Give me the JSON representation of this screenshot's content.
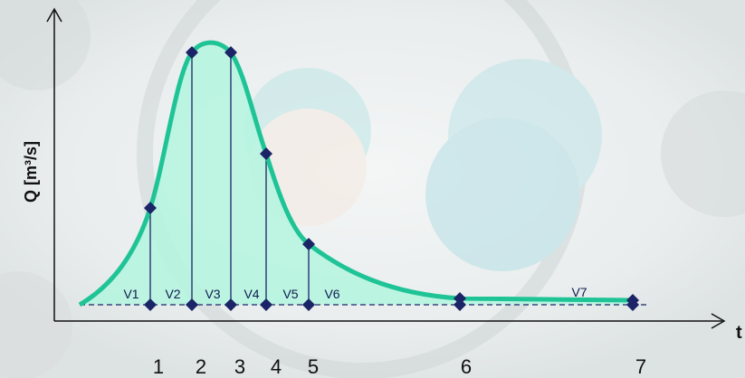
{
  "axes": {
    "y_label": "Q [m³/s]",
    "x_label": "t"
  },
  "time_labels": [
    "1",
    "2",
    "3",
    "4",
    "5",
    "6",
    "7"
  ],
  "volume_labels": [
    "V1",
    "V2",
    "V3",
    "V4",
    "V5",
    "V6",
    "V7"
  ]
}
